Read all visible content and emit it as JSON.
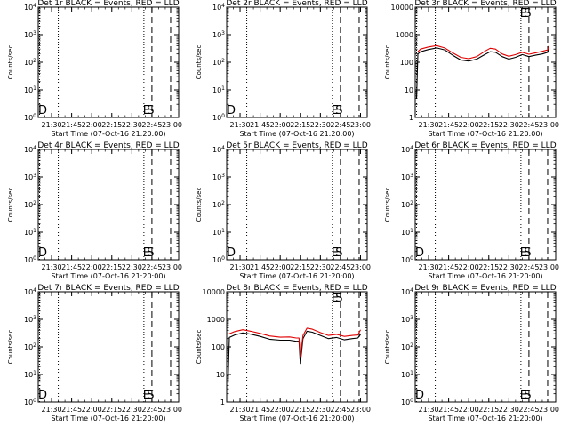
{
  "figure_xlabel": "Start Time (07-Oct-16 21:20:00)",
  "figure_ylabel": "Counts/sec",
  "x_ticks": [
    "21:30",
    "21:45",
    "22:00",
    "22:15",
    "22:30",
    "22:45",
    "23:00"
  ],
  "chart_data": [
    {
      "type": "line",
      "title": "Det 1r BLACK = Events, RED = LLD",
      "xlabel": "Start Time (07-Oct-16 21:20:00)",
      "ylabel": "Counts/sec",
      "xlim": [
        "21:20",
        "23:05"
      ],
      "ylim": [
        1,
        10000
      ],
      "yscale": "log",
      "ytick_labels": [
        "10^0",
        "10^1",
        "10^2",
        "10^3",
        "10^4"
      ],
      "vlines_dotted": [
        "21:21",
        "21:35",
        "22:39"
      ],
      "vlines_dashed": [
        "22:45",
        "22:59"
      ],
      "annotations": [
        {
          "text": "D",
          "at": "left"
        },
        {
          "text": "E",
          "at": "22:41"
        },
        {
          "text": "S",
          "at": "22:44"
        }
      ],
      "series": []
    },
    {
      "type": "line",
      "title": "Det 2r BLACK = Events, RED = LLD",
      "xlabel": "Start Time (07-Oct-16 21:20:00)",
      "ylabel": "Counts/sec",
      "xlim": [
        "21:20",
        "23:05"
      ],
      "ylim": [
        1,
        10000
      ],
      "yscale": "log",
      "ytick_labels": [
        "10^0",
        "10^1",
        "10^2",
        "10^3",
        "10^4"
      ],
      "vlines_dotted": [
        "21:21",
        "21:35",
        "22:39"
      ],
      "vlines_dashed": [
        "22:45",
        "22:59"
      ],
      "annotations": [
        {
          "text": "D",
          "at": "left"
        },
        {
          "text": "E",
          "at": "22:41"
        },
        {
          "text": "S",
          "at": "22:44"
        }
      ],
      "series": []
    },
    {
      "type": "line",
      "title": "Det 3r BLACK = Events, RED = LLD",
      "xlabel": "Start Time (07-Oct-16 21:20:00)",
      "ylabel": "Counts/sec",
      "xlim": [
        "21:20",
        "23:05"
      ],
      "ylim": [
        1,
        10000
      ],
      "yscale": "log",
      "ytick_labels": [
        "1",
        "10",
        "100",
        "1000",
        "10000"
      ],
      "vlines_dotted": [
        "21:21",
        "21:35",
        "22:39"
      ],
      "vlines_dashed": [
        "22:45",
        "22:59"
      ],
      "annotations": [
        {
          "text": "E",
          "at": "22:41"
        },
        {
          "text": "S",
          "at": "22:44"
        }
      ],
      "series": [
        {
          "color": "#000000",
          "points": [
            [
              "21:21",
              5
            ],
            [
              "21:22",
              200
            ],
            [
              "21:24",
              240
            ],
            [
              "21:30",
              290
            ],
            [
              "21:36",
              330
            ],
            [
              "21:42",
              280
            ],
            [
              "21:48",
              180
            ],
            [
              "21:54",
              120
            ],
            [
              "22:00",
              110
            ],
            [
              "22:06",
              130
            ],
            [
              "22:12",
              190
            ],
            [
              "22:16",
              240
            ],
            [
              "22:20",
              230
            ],
            [
              "22:25",
              160
            ],
            [
              "22:30",
              130
            ],
            [
              "22:35",
              150
            ],
            [
              "22:40",
              190
            ],
            [
              "22:45",
              160
            ],
            [
              "22:50",
              180
            ],
            [
              "22:55",
              200
            ],
            [
              "22:59",
              230
            ],
            [
              "23:00",
              330
            ]
          ]
        },
        {
          "color": "#e00000",
          "points": [
            [
              "21:22",
              240
            ],
            [
              "21:24",
              300
            ],
            [
              "21:30",
              360
            ],
            [
              "21:36",
              400
            ],
            [
              "21:42",
              330
            ],
            [
              "21:48",
              220
            ],
            [
              "21:54",
              150
            ],
            [
              "22:00",
              135
            ],
            [
              "22:06",
              160
            ],
            [
              "22:12",
              250
            ],
            [
              "22:16",
              320
            ],
            [
              "22:20",
              300
            ],
            [
              "22:25",
              200
            ],
            [
              "22:30",
              165
            ],
            [
              "22:35",
              190
            ],
            [
              "22:40",
              230
            ],
            [
              "22:45",
              195
            ],
            [
              "22:50",
              220
            ],
            [
              "22:55",
              250
            ],
            [
              "22:59",
              280
            ],
            [
              "23:00",
              400
            ]
          ]
        }
      ]
    },
    {
      "type": "line",
      "title": "Det 4r BLACK = Events, RED = LLD",
      "xlabel": "Start Time (07-Oct-16 21:20:00)",
      "ylabel": "Counts/sec",
      "xlim": [
        "21:20",
        "23:05"
      ],
      "ylim": [
        1,
        10000
      ],
      "yscale": "log",
      "ytick_labels": [
        "10^0",
        "10^1",
        "10^2",
        "10^3",
        "10^4"
      ],
      "vlines_dotted": [
        "21:21",
        "21:35",
        "22:39"
      ],
      "vlines_dashed": [
        "22:45",
        "22:59"
      ],
      "annotations": [
        {
          "text": "D",
          "at": "left"
        },
        {
          "text": "E",
          "at": "22:41"
        },
        {
          "text": "S",
          "at": "22:44"
        }
      ],
      "series": []
    },
    {
      "type": "line",
      "title": "Det 5r BLACK = Events, RED = LLD",
      "xlabel": "Start Time (07-Oct-16 21:20:00)",
      "ylabel": "Counts/sec",
      "xlim": [
        "21:20",
        "23:05"
      ],
      "ylim": [
        1,
        10000
      ],
      "yscale": "log",
      "ytick_labels": [
        "10^0",
        "10^1",
        "10^2",
        "10^3",
        "10^4"
      ],
      "vlines_dotted": [
        "21:21",
        "21:35",
        "22:39"
      ],
      "vlines_dashed": [
        "22:45",
        "22:59"
      ],
      "annotations": [
        {
          "text": "D",
          "at": "left"
        },
        {
          "text": "E",
          "at": "22:41"
        },
        {
          "text": "S",
          "at": "22:44"
        }
      ],
      "series": []
    },
    {
      "type": "line",
      "title": "Det 6r BLACK = Events, RED = LLD",
      "xlabel": "Start Time (07-Oct-16 21:20:00)",
      "ylabel": "Counts/sec",
      "xlim": [
        "21:20",
        "23:05"
      ],
      "ylim": [
        1,
        10000
      ],
      "yscale": "log",
      "ytick_labels": [
        "10^0",
        "10^1",
        "10^2",
        "10^3",
        "10^4"
      ],
      "vlines_dotted": [
        "21:21",
        "21:35",
        "22:39"
      ],
      "vlines_dashed": [
        "22:45",
        "22:59"
      ],
      "annotations": [
        {
          "text": "D",
          "at": "left"
        },
        {
          "text": "E",
          "at": "22:41"
        },
        {
          "text": "S",
          "at": "22:44"
        }
      ],
      "series": []
    },
    {
      "type": "line",
      "title": "Det 7r BLACK = Events, RED = LLD",
      "xlabel": "Start Time (07-Oct-16 21:20:00)",
      "ylabel": "Counts/sec",
      "xlim": [
        "21:20",
        "23:05"
      ],
      "ylim": [
        1,
        10000
      ],
      "yscale": "log",
      "ytick_labels": [
        "10^0",
        "10^1",
        "10^2",
        "10^3",
        "10^4"
      ],
      "vlines_dotted": [
        "21:21",
        "21:35",
        "22:39"
      ],
      "vlines_dashed": [
        "22:45",
        "22:59"
      ],
      "annotations": [
        {
          "text": "D",
          "at": "left"
        },
        {
          "text": "E",
          "at": "22:41"
        },
        {
          "text": "S",
          "at": "22:44"
        }
      ],
      "series": []
    },
    {
      "type": "line",
      "title": "Det 8r BLACK = Events, RED = LLD",
      "xlabel": "Start Time (07-Oct-16 21:20:00)",
      "ylabel": "Counts/sec",
      "xlim": [
        "21:20",
        "23:05"
      ],
      "ylim": [
        1,
        10000
      ],
      "yscale": "log",
      "ytick_labels": [
        "1",
        "10",
        "100",
        "1000",
        "10000"
      ],
      "vlines_dotted": [
        "21:21",
        "21:35",
        "22:39"
      ],
      "vlines_dashed": [
        "22:45",
        "22:59"
      ],
      "annotations": [
        {
          "text": "E",
          "at": "22:41"
        },
        {
          "text": "S",
          "at": "22:44"
        }
      ],
      "series": [
        {
          "color": "#000000",
          "points": [
            [
              "21:21",
              5
            ],
            [
              "21:22",
              220
            ],
            [
              "21:26",
              270
            ],
            [
              "21:32",
              320
            ],
            [
              "21:38",
              290
            ],
            [
              "21:45",
              240
            ],
            [
              "21:52",
              190
            ],
            [
              "22:00",
              175
            ],
            [
              "22:07",
              175
            ],
            [
              "22:12",
              160
            ],
            [
              "22:14",
              160
            ],
            [
              "22:15",
              25
            ],
            [
              "22:17",
              200
            ],
            [
              "22:20",
              370
            ],
            [
              "22:24",
              340
            ],
            [
              "22:30",
              260
            ],
            [
              "22:36",
              200
            ],
            [
              "22:42",
              220
            ],
            [
              "22:48",
              180
            ],
            [
              "22:54",
              200
            ],
            [
              "22:58",
              210
            ],
            [
              "23:00",
              280
            ]
          ]
        },
        {
          "color": "#e00000",
          "points": [
            [
              "21:22",
              300
            ],
            [
              "21:26",
              360
            ],
            [
              "21:32",
              420
            ],
            [
              "21:38",
              370
            ],
            [
              "21:45",
              310
            ],
            [
              "21:52",
              250
            ],
            [
              "22:00",
              225
            ],
            [
              "22:07",
              230
            ],
            [
              "22:12",
              210
            ],
            [
              "22:14",
              210
            ],
            [
              "22:15",
              45
            ],
            [
              "22:17",
              260
            ],
            [
              "22:20",
              480
            ],
            [
              "22:24",
              440
            ],
            [
              "22:30",
              330
            ],
            [
              "22:36",
              260
            ],
            [
              "22:42",
              285
            ],
            [
              "22:48",
              240
            ],
            [
              "22:54",
              260
            ],
            [
              "22:58",
              270
            ],
            [
              "23:00",
              420
            ]
          ]
        }
      ]
    },
    {
      "type": "line",
      "title": "Det 9r BLACK = Events, RED = LLD",
      "xlabel": "Start Time (07-Oct-16 21:20:00)",
      "ylabel": "Counts/sec",
      "xlim": [
        "21:20",
        "23:05"
      ],
      "ylim": [
        1,
        10000
      ],
      "yscale": "log",
      "ytick_labels": [
        "10^0",
        "10^1",
        "10^2",
        "10^3",
        "10^4"
      ],
      "vlines_dotted": [
        "21:21",
        "21:35",
        "22:39"
      ],
      "vlines_dashed": [
        "22:45",
        "22:59"
      ],
      "annotations": [
        {
          "text": "D",
          "at": "left"
        },
        {
          "text": "E",
          "at": "22:41"
        },
        {
          "text": "S",
          "at": "22:44"
        }
      ],
      "series": []
    }
  ]
}
